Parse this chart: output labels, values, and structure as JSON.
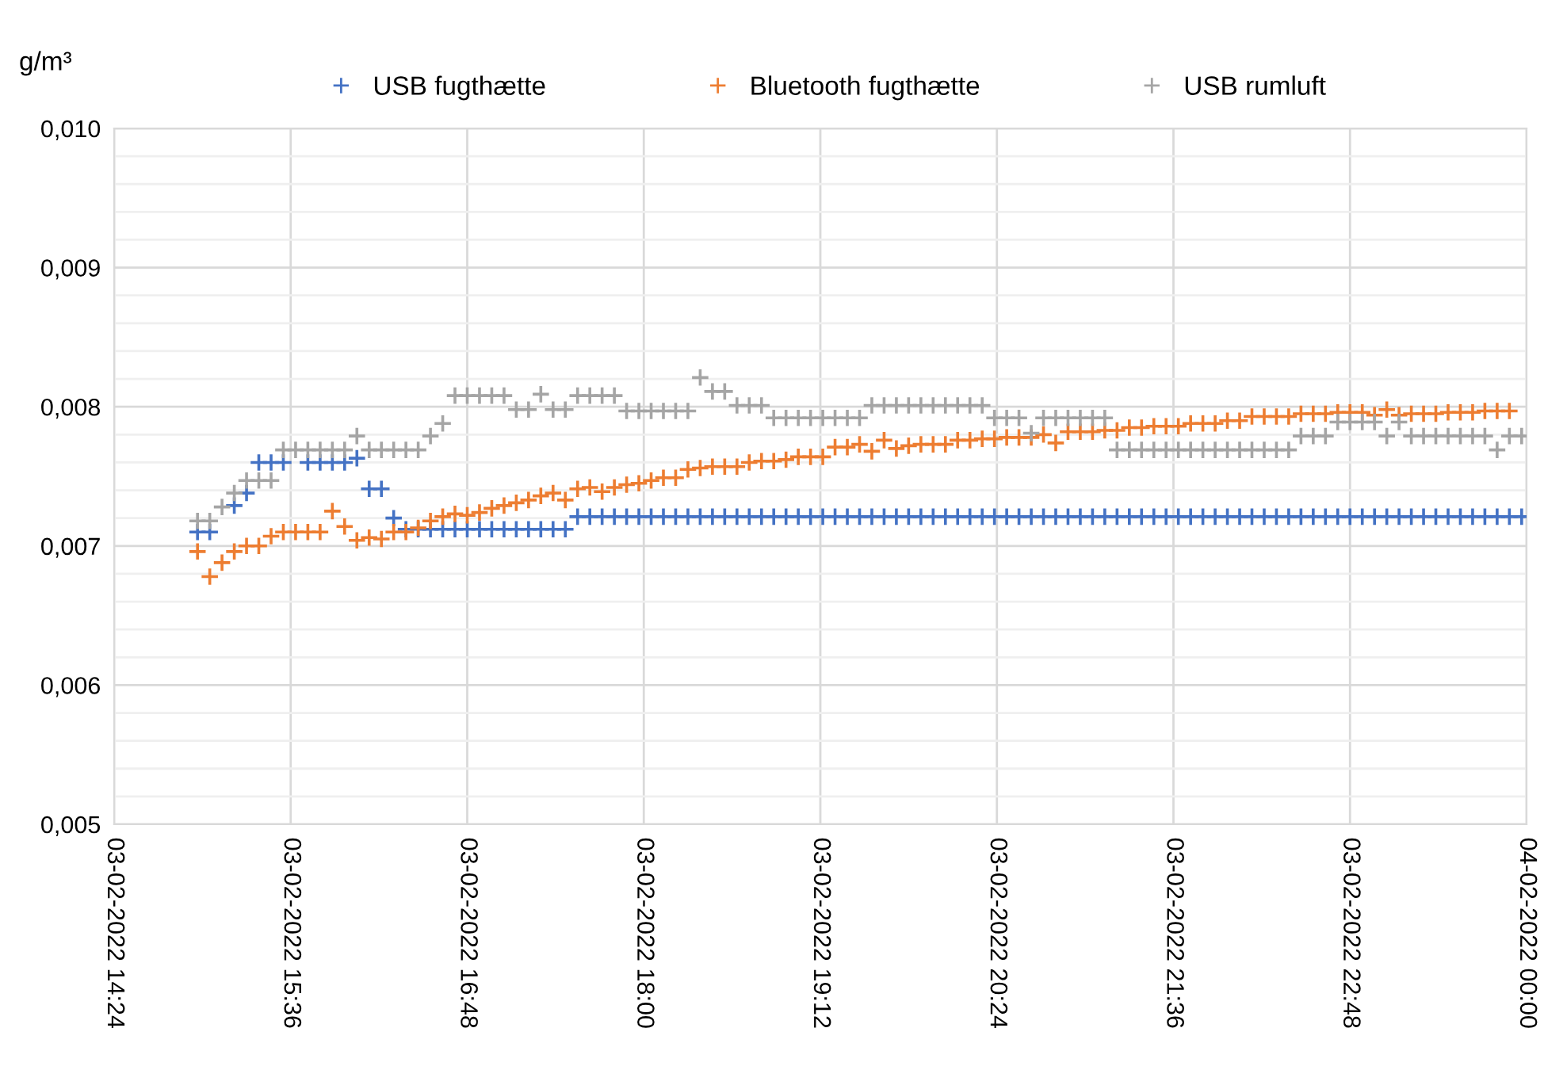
{
  "chart_data": {
    "type": "scatter",
    "ylabel": "g/m³",
    "marker": "cross",
    "grid": true,
    "legend": "top",
    "x": [
      "2022-02-03T14:58",
      "2022-02-03T15:03",
      "2022-02-03T15:08",
      "2022-02-03T15:13",
      "2022-02-03T15:18",
      "2022-02-03T15:23",
      "2022-02-03T15:28",
      "2022-02-03T15:33",
      "2022-02-03T15:38",
      "2022-02-03T15:43",
      "2022-02-03T15:48",
      "2022-02-03T15:53",
      "2022-02-03T15:58",
      "2022-02-03T16:03",
      "2022-02-03T16:08",
      "2022-02-03T16:13",
      "2022-02-03T16:18",
      "2022-02-03T16:23",
      "2022-02-03T16:28",
      "2022-02-03T16:33",
      "2022-02-03T16:38",
      "2022-02-03T16:43",
      "2022-02-03T16:48",
      "2022-02-03T16:53",
      "2022-02-03T16:58",
      "2022-02-03T17:03",
      "2022-02-03T17:08",
      "2022-02-03T17:13",
      "2022-02-03T17:18",
      "2022-02-03T17:23",
      "2022-02-03T17:28",
      "2022-02-03T17:33",
      "2022-02-03T17:38",
      "2022-02-03T17:43",
      "2022-02-03T17:48",
      "2022-02-03T17:53",
      "2022-02-03T17:58",
      "2022-02-03T18:03",
      "2022-02-03T18:08",
      "2022-02-03T18:13",
      "2022-02-03T18:18",
      "2022-02-03T18:23",
      "2022-02-03T18:28",
      "2022-02-03T18:33",
      "2022-02-03T18:38",
      "2022-02-03T18:43",
      "2022-02-03T18:48",
      "2022-02-03T18:53",
      "2022-02-03T18:58",
      "2022-02-03T19:03",
      "2022-02-03T19:08",
      "2022-02-03T19:13",
      "2022-02-03T19:18",
      "2022-02-03T19:23",
      "2022-02-03T19:28",
      "2022-02-03T19:33",
      "2022-02-03T19:38",
      "2022-02-03T19:43",
      "2022-02-03T19:48",
      "2022-02-03T19:53",
      "2022-02-03T19:58",
      "2022-02-03T20:03",
      "2022-02-03T20:08",
      "2022-02-03T20:13",
      "2022-02-03T20:18",
      "2022-02-03T20:23",
      "2022-02-03T20:28",
      "2022-02-03T20:33",
      "2022-02-03T20:38",
      "2022-02-03T20:43",
      "2022-02-03T20:48",
      "2022-02-03T20:53",
      "2022-02-03T20:58",
      "2022-02-03T21:03",
      "2022-02-03T21:08",
      "2022-02-03T21:13",
      "2022-02-03T21:18",
      "2022-02-03T21:23",
      "2022-02-03T21:28",
      "2022-02-03T21:33",
      "2022-02-03T21:38",
      "2022-02-03T21:43",
      "2022-02-03T21:48",
      "2022-02-03T21:53",
      "2022-02-03T21:58",
      "2022-02-03T22:03",
      "2022-02-03T22:08",
      "2022-02-03T22:13",
      "2022-02-03T22:18",
      "2022-02-03T22:23",
      "2022-02-03T22:28",
      "2022-02-03T22:33",
      "2022-02-03T22:38",
      "2022-02-03T22:43",
      "2022-02-03T22:48",
      "2022-02-03T22:53",
      "2022-02-03T22:58",
      "2022-02-03T23:03",
      "2022-02-03T23:08",
      "2022-02-03T23:13",
      "2022-02-03T23:18",
      "2022-02-03T23:23",
      "2022-02-03T23:28",
      "2022-02-03T23:33",
      "2022-02-03T23:38",
      "2022-02-03T23:43",
      "2022-02-03T23:48",
      "2022-02-03T23:53",
      "2022-02-03T23:58"
    ],
    "series": [
      {
        "name": "USB fugthætte",
        "color": "#4472c4",
        "values": [
          0.0071,
          0.0071,
          null,
          0.00729,
          0.00738,
          0.0076,
          0.0076,
          0.0076,
          null,
          0.0076,
          0.0076,
          0.0076,
          0.0076,
          0.00763,
          0.00741,
          0.00741,
          0.0072,
          0.00712,
          0.00712,
          0.00712,
          0.00712,
          0.00712,
          0.00712,
          0.00712,
          0.00712,
          0.00712,
          0.00712,
          0.00712,
          0.00712,
          0.00712,
          0.00712,
          0.00721,
          0.00721,
          0.00721,
          0.00721,
          0.00721,
          0.00721,
          0.00721,
          0.00721,
          0.00721,
          0.00721,
          0.00721,
          0.00721,
          0.00721,
          0.00721,
          0.00721,
          0.00721,
          0.00721,
          0.00721,
          0.00721,
          0.00721,
          0.00721,
          0.00721,
          0.00721,
          0.00721,
          0.00721,
          0.00721,
          0.00721,
          0.00721,
          0.00721,
          0.00721,
          0.00721,
          0.00721,
          0.00721,
          0.00721,
          0.00721,
          0.00721,
          0.00721,
          0.00721,
          0.00721,
          0.00721,
          0.00721,
          0.00721,
          0.00721,
          0.00721,
          0.00721,
          0.00721,
          0.00721,
          0.00721,
          0.00721,
          0.00721,
          0.00721,
          0.00721,
          0.00721,
          0.00721,
          0.00721,
          0.00721,
          0.00721,
          0.00721,
          0.00721,
          0.00721,
          0.00721,
          0.00721,
          0.00721,
          0.00721,
          0.00721,
          0.00721,
          0.00721,
          0.00721,
          0.00721,
          0.00721,
          0.00721,
          0.00721,
          0.00721,
          0.00721,
          0.00721,
          0.00721,
          0.00721,
          0.00721
        ]
      },
      {
        "name": "Bluetooth fugthætte",
        "color": "#ed7d31",
        "values": [
          0.00696,
          0.00678,
          0.00688,
          0.00696,
          0.007,
          0.007,
          0.00707,
          0.0071,
          0.0071,
          0.0071,
          0.0071,
          0.00725,
          0.00714,
          0.00704,
          0.00706,
          0.00705,
          0.0071,
          0.0071,
          0.00713,
          0.00718,
          0.00721,
          0.00723,
          0.00722,
          0.00724,
          0.00727,
          0.00729,
          0.00731,
          0.00733,
          0.00736,
          0.00738,
          0.00733,
          0.00741,
          0.00742,
          0.00739,
          0.00742,
          0.00744,
          0.00745,
          0.00747,
          0.00749,
          0.00749,
          0.00755,
          0.00756,
          0.00757,
          0.00757,
          0.00757,
          0.0076,
          0.00761,
          0.00761,
          0.00762,
          0.00764,
          0.00764,
          0.00764,
          0.00771,
          0.00771,
          0.00773,
          0.00768,
          0.00776,
          0.0077,
          0.00772,
          0.00773,
          0.00773,
          0.00773,
          0.00776,
          0.00776,
          0.00777,
          0.00777,
          0.00778,
          0.00778,
          0.00778,
          0.0078,
          0.00774,
          0.00782,
          0.00782,
          0.00782,
          0.00783,
          0.00783,
          0.00785,
          0.00785,
          0.00786,
          0.00786,
          0.00786,
          0.00788,
          0.00788,
          0.00788,
          0.0079,
          0.0079,
          0.00793,
          0.00793,
          0.00793,
          0.00793,
          0.00795,
          0.00795,
          0.00795,
          0.00796,
          0.00796,
          0.00796,
          0.00794,
          0.00798,
          0.00794,
          0.00795,
          0.00795,
          0.00795,
          0.00796,
          0.00796,
          0.00796,
          0.00797,
          0.00797,
          0.00797,
          null
        ]
      },
      {
        "name": "USB rumluft",
        "color": "#a5a5a5",
        "values": [
          0.00718,
          0.00718,
          0.00728,
          0.00738,
          0.00747,
          0.00747,
          0.00747,
          0.00769,
          0.00769,
          0.00769,
          0.00769,
          0.00769,
          0.00769,
          0.00779,
          0.00769,
          0.00769,
          0.00769,
          0.00769,
          0.00769,
          0.00779,
          0.00788,
          0.00808,
          0.00808,
          0.00808,
          0.00808,
          0.00808,
          0.00798,
          0.00798,
          0.00809,
          0.00798,
          0.00798,
          0.00808,
          0.00808,
          0.00808,
          0.00808,
          0.00797,
          0.00797,
          0.00797,
          0.00797,
          0.00797,
          0.00797,
          0.00821,
          0.00811,
          0.00811,
          0.00801,
          0.00801,
          0.00801,
          0.00792,
          0.00792,
          0.00792,
          0.00792,
          0.00792,
          0.00792,
          0.00792,
          0.00792,
          0.00801,
          0.00801,
          0.00801,
          0.00801,
          0.00801,
          0.00801,
          0.00801,
          0.00801,
          0.00801,
          0.00801,
          0.00792,
          0.00792,
          0.00792,
          0.00781,
          0.00792,
          0.00792,
          0.00792,
          0.00792,
          0.00792,
          0.00792,
          0.00769,
          0.00769,
          0.00769,
          0.00769,
          0.00769,
          0.00769,
          0.00769,
          0.00769,
          0.00769,
          0.00769,
          0.00769,
          0.00769,
          0.00769,
          0.00769,
          0.00769,
          0.00779,
          0.00779,
          0.00779,
          0.00789,
          0.00789,
          0.00789,
          0.00789,
          0.00779,
          0.00789,
          0.00779,
          0.00779,
          0.00779,
          0.00779,
          0.00779,
          0.00779,
          0.00779,
          0.00769,
          0.00779,
          0.00779
        ]
      }
    ],
    "xlim": [
      "2022-02-03T14:24",
      "2022-02-04T00:00"
    ],
    "xticks": [
      {
        "value": "2022-02-03T14:24",
        "label": "03-02-2022 14:24"
      },
      {
        "value": "2022-02-03T15:36",
        "label": "03-02-2022 15:36"
      },
      {
        "value": "2022-02-03T16:48",
        "label": "03-02-2022 16:48"
      },
      {
        "value": "2022-02-03T18:00",
        "label": "03-02-2022 18:00"
      },
      {
        "value": "2022-02-03T19:12",
        "label": "03-02-2022 19:12"
      },
      {
        "value": "2022-02-03T20:24",
        "label": "03-02-2022 20:24"
      },
      {
        "value": "2022-02-03T21:36",
        "label": "03-02-2022 21:36"
      },
      {
        "value": "2022-02-03T22:48",
        "label": "03-02-2022 22:48"
      },
      {
        "value": "2022-02-04T00:00",
        "label": "04-02-2022 00:00"
      }
    ],
    "ylim": [
      0.005,
      0.01
    ],
    "yticks": [
      {
        "value": 0.005,
        "label": "0,005"
      },
      {
        "value": 0.0052,
        "label": null
      },
      {
        "value": 0.0054,
        "label": null
      },
      {
        "value": 0.0056,
        "label": null
      },
      {
        "value": 0.0058,
        "label": null
      },
      {
        "value": 0.006,
        "label": "0,006"
      },
      {
        "value": 0.0062,
        "label": null
      },
      {
        "value": 0.0064,
        "label": null
      },
      {
        "value": 0.0066,
        "label": null
      },
      {
        "value": 0.0068,
        "label": null
      },
      {
        "value": 0.007,
        "label": "0,007"
      },
      {
        "value": 0.0072,
        "label": null
      },
      {
        "value": 0.0074,
        "label": null
      },
      {
        "value": 0.0076,
        "label": null
      },
      {
        "value": 0.0078,
        "label": null
      },
      {
        "value": 0.008,
        "label": "0,008"
      },
      {
        "value": 0.0082,
        "label": null
      },
      {
        "value": 0.0084,
        "label": null
      },
      {
        "value": 0.0086,
        "label": null
      },
      {
        "value": 0.0088,
        "label": null
      },
      {
        "value": 0.009,
        "label": "0,009"
      },
      {
        "value": 0.0092,
        "label": null
      },
      {
        "value": 0.0094,
        "label": null
      },
      {
        "value": 0.0096,
        "label": null
      },
      {
        "value": 0.0098,
        "label": null
      },
      {
        "value": 0.01,
        "label": "0,010"
      }
    ]
  }
}
